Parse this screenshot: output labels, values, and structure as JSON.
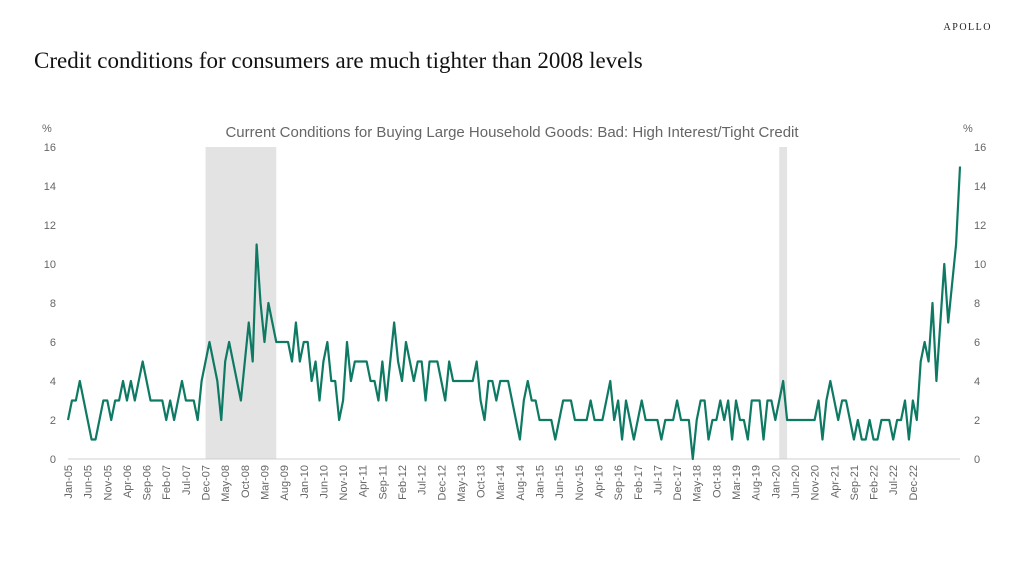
{
  "brand": "APOLLO",
  "headline": "Credit conditions for consumers are much tighter than 2008 levels",
  "chart_data": {
    "type": "line",
    "title": "Current Conditions for Buying Large Household Goods: Bad: High Interest/Tight Credit",
    "y_unit_left": "%",
    "y_unit_right": "%",
    "ylim": [
      0,
      16
    ],
    "y_ticks": [
      0,
      2,
      4,
      6,
      8,
      10,
      12,
      14,
      16
    ],
    "x_start": "Jan-05",
    "x_tick_labels": [
      "Jan-05",
      "Jun-05",
      "Nov-05",
      "Apr-06",
      "Sep-06",
      "Feb-07",
      "Jul-07",
      "Dec-07",
      "May-08",
      "Oct-08",
      "Mar-09",
      "Aug-09",
      "Jan-10",
      "Jun-10",
      "Nov-10",
      "Apr-11",
      "Sep-11",
      "Feb-12",
      "Jul-12",
      "Dec-12",
      "May-13",
      "Oct-13",
      "Mar-14",
      "Aug-14",
      "Jan-15",
      "Jun-15",
      "Nov-15",
      "Apr-16",
      "Sep-16",
      "Feb-17",
      "Jul-17",
      "Dec-17",
      "May-18",
      "Oct-18",
      "Mar-19",
      "Aug-19",
      "Jan-20",
      "Jun-20",
      "Nov-20",
      "Apr-21",
      "Sep-21",
      "Feb-22",
      "Jul-22",
      "Dec-22"
    ],
    "recession_shading": [
      [
        "Dec-07",
        "Jun-09"
      ],
      [
        "Feb-20",
        "Apr-20"
      ]
    ],
    "grid": false,
    "legend": "none",
    "line_color": "#0f7a64",
    "shade_color": "#e3e3e3",
    "series": [
      {
        "values": [
          2,
          3,
          3,
          4,
          3,
          2,
          1,
          1,
          2,
          3,
          3,
          2,
          3,
          3,
          4,
          3,
          4,
          3,
          4,
          5,
          4,
          3,
          3,
          3,
          3,
          2,
          3,
          2,
          3,
          4,
          3,
          3,
          3,
          2,
          4,
          5,
          6,
          5,
          4,
          2,
          5,
          6,
          5,
          4,
          3,
          5,
          7,
          5,
          11,
          8,
          6,
          8,
          7,
          6,
          6,
          6,
          6,
          5,
          7,
          5,
          6,
          6,
          4,
          5,
          3,
          5,
          6,
          4,
          4,
          2,
          3,
          6,
          4,
          5,
          5,
          5,
          5,
          4,
          4,
          3,
          5,
          3,
          5,
          7,
          5,
          4,
          6,
          5,
          4,
          5,
          5,
          3,
          5,
          5,
          5,
          4,
          3,
          5,
          4,
          4,
          4,
          4,
          4,
          4,
          5,
          3,
          2,
          4,
          4,
          3,
          4,
          4,
          4,
          3,
          2,
          1,
          3,
          4,
          3,
          3,
          2,
          2,
          2,
          2,
          1,
          2,
          3,
          3,
          3,
          2,
          2,
          2,
          2,
          3,
          2,
          2,
          2,
          3,
          4,
          2,
          3,
          1,
          3,
          2,
          1,
          2,
          3,
          2,
          2,
          2,
          2,
          1,
          2,
          2,
          2,
          3,
          2,
          2,
          2,
          0,
          2,
          3,
          3,
          1,
          2,
          2,
          3,
          2,
          3,
          1,
          3,
          2,
          2,
          1,
          3,
          3,
          3,
          1,
          3,
          3,
          2,
          3,
          4,
          2,
          2,
          2,
          2,
          2,
          2,
          2,
          2,
          3,
          1,
          3,
          4,
          3,
          2,
          3,
          3,
          2,
          1,
          2,
          1,
          1,
          2,
          1,
          1,
          2,
          2,
          2,
          1,
          2,
          2,
          3,
          1,
          3,
          2,
          5,
          6,
          5,
          8,
          4,
          7,
          10,
          7,
          9,
          11,
          15
        ]
      }
    ]
  }
}
